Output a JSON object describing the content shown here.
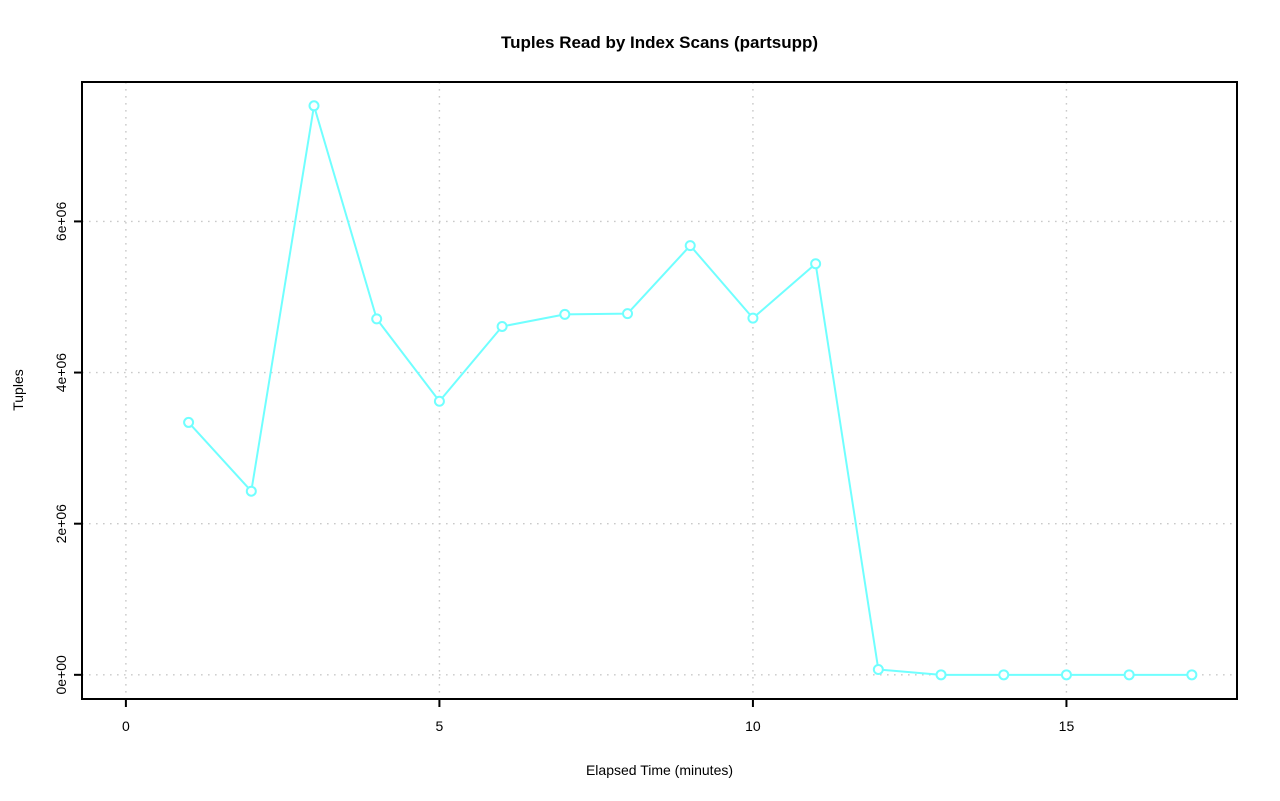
{
  "chart_data": {
    "type": "line",
    "title": "Tuples Read by Index Scans (partsupp)",
    "xlabel": "Elapsed Time (minutes)",
    "ylabel": "Tuples",
    "x": [
      1,
      2,
      3,
      4,
      5,
      6,
      7,
      8,
      9,
      10,
      11,
      12,
      13,
      14,
      15,
      16,
      17
    ],
    "values": [
      3340000,
      2430000,
      7530000,
      4710000,
      3620000,
      4610000,
      4770000,
      4780000,
      5680000,
      4720000,
      5440000,
      70000,
      0,
      0,
      0,
      0,
      0
    ],
    "xlim": [
      -0.7,
      17.72
    ],
    "ylim": [
      -320000,
      7845000
    ],
    "xticks": [
      0,
      5,
      10,
      15
    ],
    "xtick_labels": [
      "0",
      "5",
      "10",
      "15"
    ],
    "yticks": [
      0,
      2000000,
      4000000,
      6000000
    ],
    "ytick_labels": [
      "0e+00",
      "2e+06",
      "4e+06",
      "6e+06"
    ],
    "grid": true,
    "legend": null,
    "marker": "open-circle",
    "colors": {
      "series_line": "#70ffff",
      "marker_stroke": "#70ffff",
      "marker_fill": "#ffffff",
      "grid": "#c9c9c9",
      "axis": "#000000",
      "background": "#ffffff"
    }
  }
}
